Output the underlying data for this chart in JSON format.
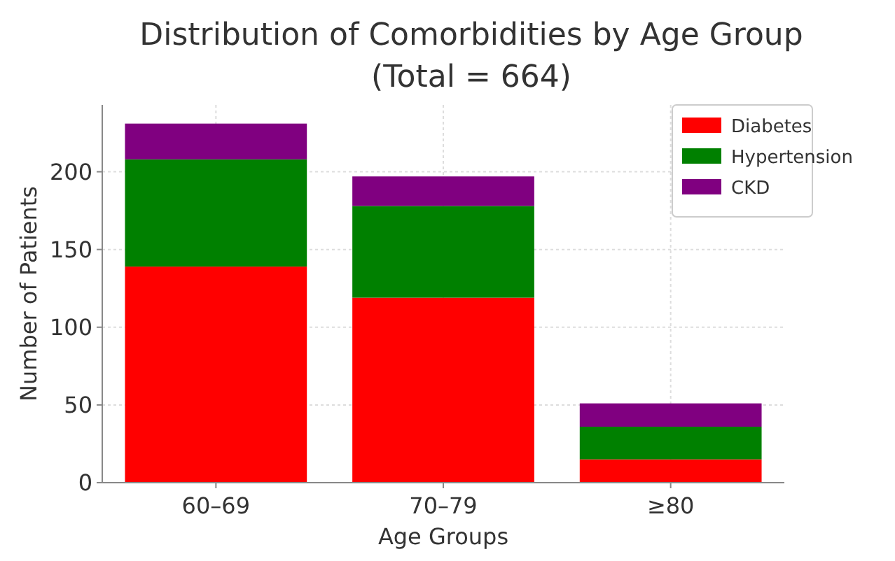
{
  "chart_data": {
    "type": "bar",
    "title": "Distribution of Comorbidities by Age Group\n(Total = 664)",
    "xlabel": "Age Groups",
    "ylabel": "Number of Patients",
    "categories": [
      "60–69",
      "70–79",
      "≥80"
    ],
    "stacked": true,
    "series": [
      {
        "name": "Diabetes",
        "color": "#ff0000",
        "values": [
          139,
          119,
          15
        ]
      },
      {
        "name": "Hypertension",
        "color": "#008000",
        "values": [
          69,
          59,
          21
        ]
      },
      {
        "name": "CKD",
        "color": "#800080",
        "values": [
          23,
          19,
          15
        ]
      }
    ],
    "ylim": [
      0,
      243
    ],
    "yticks": [
      0,
      50,
      100,
      150,
      200
    ],
    "grid": true,
    "legend": "top right"
  }
}
